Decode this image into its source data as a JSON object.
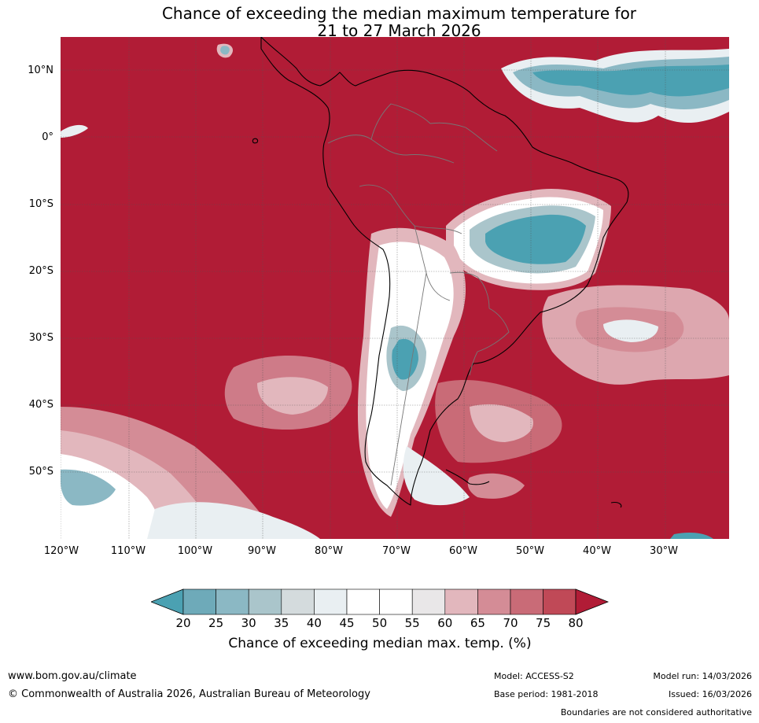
{
  "title": {
    "line1": "Chance of exceeding the median maximum temperature for",
    "line2": "21 to 27 March 2026"
  },
  "map": {
    "lat_labels": [
      "10°N",
      "0°",
      "10°S",
      "20°S",
      "30°S",
      "40°S",
      "50°S"
    ],
    "lon_labels": [
      "120°W",
      "110°W",
      "100°W",
      "90°W",
      "80°W",
      "70°W",
      "60°W",
      "50°W",
      "40°W",
      "30°W"
    ]
  },
  "colorbar": {
    "ticks": [
      "20",
      "25",
      "30",
      "35",
      "40",
      "45",
      "50",
      "55",
      "60",
      "65",
      "70",
      "75",
      "80"
    ],
    "colors": [
      "#4ba1b2",
      "#6eaab9",
      "#8bb8c4",
      "#aac5cb",
      "#d4dbdd",
      "#e9eff2",
      "#ffffff",
      "#ffffff",
      "#e9e7e8",
      "#e2b7bd",
      "#d48c96",
      "#c96b77",
      "#c04957",
      "#b11c36"
    ],
    "label": "Chance of exceeding median max. temp. (%)"
  },
  "footer": {
    "url": "www.bom.gov.au/climate",
    "copyright": "© Commonwealth of Australia 2026, Australian Bureau of Meteorology",
    "model": "Model: ACCESS-S2",
    "base_period": "Base period: 1981-2018",
    "model_run": "Model run: 14/03/2026",
    "issued": "Issued: 16/03/2026",
    "boundaries": "Boundaries are not considered authoritative"
  }
}
